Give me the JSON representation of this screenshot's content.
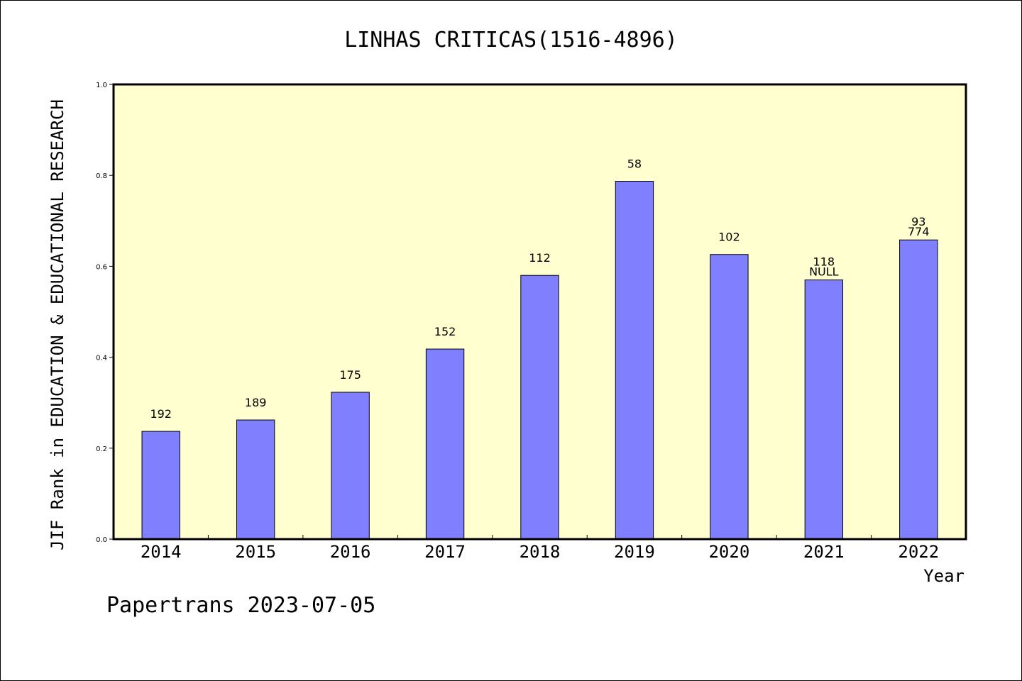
{
  "chart_data": {
    "type": "bar",
    "title": "LINHAS CRITICAS(1516-4896)",
    "xlabel": "Year",
    "ylabel": "JIF Rank in EDUCATION & EDUCATIONAL RESEARCH",
    "ylim": [
      0,
      1.0
    ],
    "yticks": [
      "0.0",
      "0.2",
      "0.4",
      "0.6",
      "0.8",
      "1.0"
    ],
    "categories": [
      "2014",
      "2015",
      "2016",
      "2017",
      "2018",
      "2019",
      "2020",
      "2021",
      "2022"
    ],
    "values": [
      0.237,
      0.262,
      0.323,
      0.418,
      0.58,
      0.787,
      0.626,
      0.57,
      0.658
    ],
    "bar_labels": [
      [
        "192"
      ],
      [
        "189"
      ],
      [
        "175"
      ],
      [
        "152"
      ],
      [
        "112"
      ],
      [
        "58"
      ],
      [
        "102"
      ],
      [
        "118",
        "NULL"
      ],
      [
        "93",
        "774"
      ]
    ],
    "grid": false,
    "bar_color": "#8080ff",
    "plot_background": "#ffffd0"
  },
  "footer": "Papertrans 2023-07-05"
}
